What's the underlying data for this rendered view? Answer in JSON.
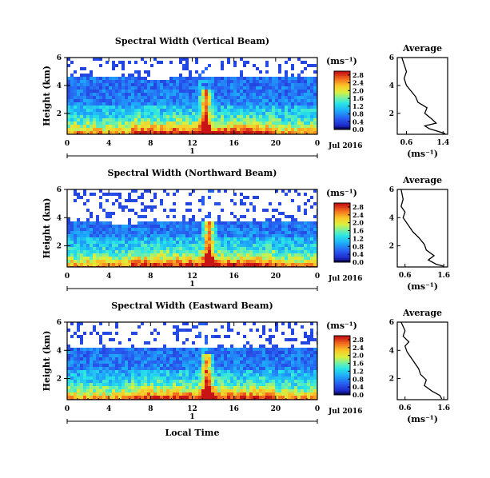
{
  "chart_data": [
    {
      "type": "heatmap",
      "title": "Spectral Width (Vertical Beam)",
      "ylabel": "Height (km)",
      "x_ticks": [
        "0",
        "4",
        "8",
        "12",
        "16",
        "20",
        "0"
      ],
      "y_ticks": [
        "2",
        "4",
        "6"
      ],
      "date_ticks": [
        "1"
      ],
      "date_label": "Jul 2016",
      "ylim": [
        0.5,
        6
      ],
      "xlim": [
        0,
        24
      ],
      "colorbar": {
        "units": "(ms⁻¹)",
        "ticks": [
          "0.0",
          "0.4",
          "0.8",
          "1.2",
          "1.6",
          "2.0",
          "2.4",
          "2.8"
        ],
        "range": [
          0,
          3.0
        ]
      },
      "profile": {
        "title": "Average",
        "xlabel": "(ms⁻¹)",
        "x_ticks": [
          "0.6",
          "1.4"
        ],
        "y_ticks": [
          "2",
          "4",
          "6"
        ],
        "xlim": [
          0.4,
          1.5
        ],
        "ylim": [
          0.5,
          6
        ],
        "points": [
          [
            1.45,
            0.55
          ],
          [
            1.3,
            0.7
          ],
          [
            1.1,
            0.9
          ],
          [
            1.0,
            1.1
          ],
          [
            1.25,
            1.3
          ],
          [
            1.15,
            1.6
          ],
          [
            1.0,
            2.0
          ],
          [
            1.05,
            2.4
          ],
          [
            0.85,
            2.8
          ],
          [
            0.8,
            3.2
          ],
          [
            0.7,
            3.6
          ],
          [
            0.6,
            4.0
          ],
          [
            0.55,
            4.5
          ],
          [
            0.6,
            5.0
          ],
          [
            0.55,
            5.5
          ],
          [
            0.5,
            6.0
          ]
        ]
      },
      "shape": {
        "max_height_km": 4.7,
        "spike_hour": 13.3,
        "clear_cells": [
          [
            0.8,
            5.3,
            3.6
          ],
          [
            3.7,
            5.0,
            2.0
          ],
          [
            8.8,
            4.9,
            2.2
          ],
          [
            14.5,
            5.2,
            2.3
          ],
          [
            19.2,
            5.0,
            2.2
          ],
          [
            20.8,
            5.5,
            3.2
          ]
        ]
      }
    },
    {
      "type": "heatmap",
      "title": "Spectral Width (Northward Beam)",
      "ylabel": "Height (km)",
      "x_ticks": [
        "0",
        "4",
        "8",
        "12",
        "16",
        "20",
        "0"
      ],
      "y_ticks": [
        "2",
        "4",
        "6"
      ],
      "date_ticks": [
        "1"
      ],
      "date_label": "Jul 2016",
      "ylim": [
        0.5,
        6
      ],
      "xlim": [
        0,
        24
      ],
      "colorbar": {
        "units": "(ms⁻¹)",
        "ticks": [
          "0.0",
          "0.4",
          "0.8",
          "1.2",
          "1.6",
          "2.0",
          "2.4",
          "2.8"
        ],
        "range": [
          0,
          3.0
        ]
      },
      "profile": {
        "title": "Average",
        "xlabel": "(ms⁻¹)",
        "x_ticks": [
          "0.6",
          "1.6"
        ],
        "y_ticks": [
          "2",
          "4",
          "6"
        ],
        "xlim": [
          0.4,
          1.7
        ],
        "ylim": [
          0.5,
          6
        ],
        "points": [
          [
            1.6,
            0.55
          ],
          [
            1.4,
            0.7
          ],
          [
            1.2,
            1.0
          ],
          [
            1.35,
            1.3
          ],
          [
            1.15,
            1.7
          ],
          [
            1.1,
            2.1
          ],
          [
            0.95,
            2.6
          ],
          [
            0.8,
            3.0
          ],
          [
            0.65,
            3.6
          ],
          [
            0.55,
            4.0
          ],
          [
            0.6,
            4.4
          ],
          [
            0.5,
            4.8
          ],
          [
            0.55,
            5.3
          ],
          [
            0.5,
            6.0
          ]
        ]
      },
      "shape": {
        "max_height_km": 3.9,
        "spike_hour": 13.6,
        "clear_cells": [
          [
            0.6,
            4.6,
            3.2
          ],
          [
            5.5,
            4.0,
            2.5
          ],
          [
            10.8,
            4.8,
            3.5
          ],
          [
            14.8,
            4.4,
            3.3
          ],
          [
            20.3,
            5.0,
            2.8
          ]
        ]
      }
    },
    {
      "type": "heatmap",
      "title": "Spectral Width (Eastward Beam)",
      "ylabel": "Height (km)",
      "xlabel": "Local Time",
      "x_ticks": [
        "0",
        "4",
        "8",
        "12",
        "16",
        "20",
        "0"
      ],
      "y_ticks": [
        "2",
        "4",
        "6"
      ],
      "date_ticks": [
        "1"
      ],
      "date_label": "Jul 2016",
      "ylim": [
        0.5,
        6
      ],
      "xlim": [
        0,
        24
      ],
      "colorbar": {
        "units": "(ms⁻¹)",
        "ticks": [
          "0.0",
          "0.4",
          "0.8",
          "1.2",
          "1.6",
          "2.0",
          "2.4",
          "2.8"
        ],
        "range": [
          0,
          3.0
        ]
      },
      "profile": {
        "title": "Average",
        "xlabel": "(ms⁻¹)",
        "x_ticks": [
          "0.6",
          "1.6"
        ],
        "y_ticks": [
          "2",
          "4",
          "6"
        ],
        "xlim": [
          0.4,
          1.7
        ],
        "ylim": [
          0.5,
          6
        ],
        "points": [
          [
            1.55,
            0.55
          ],
          [
            1.5,
            0.8
          ],
          [
            1.3,
            1.1
          ],
          [
            1.1,
            1.5
          ],
          [
            1.15,
            1.9
          ],
          [
            1.0,
            2.3
          ],
          [
            0.95,
            2.7
          ],
          [
            0.85,
            3.1
          ],
          [
            0.75,
            3.5
          ],
          [
            0.65,
            3.9
          ],
          [
            0.6,
            4.3
          ],
          [
            0.7,
            4.6
          ],
          [
            0.55,
            5.0
          ],
          [
            0.6,
            5.4
          ],
          [
            0.5,
            6.0
          ]
        ]
      },
      "shape": {
        "max_height_km": 4.4,
        "spike_hour": 13.4,
        "clear_cells": [
          [
            0.4,
            5.0,
            2.6
          ],
          [
            6.0,
            5.3,
            2.5
          ],
          [
            10.5,
            4.7,
            2.5
          ],
          [
            15.8,
            5.0,
            2.4
          ],
          [
            20.0,
            5.3,
            3.0
          ]
        ]
      }
    }
  ]
}
